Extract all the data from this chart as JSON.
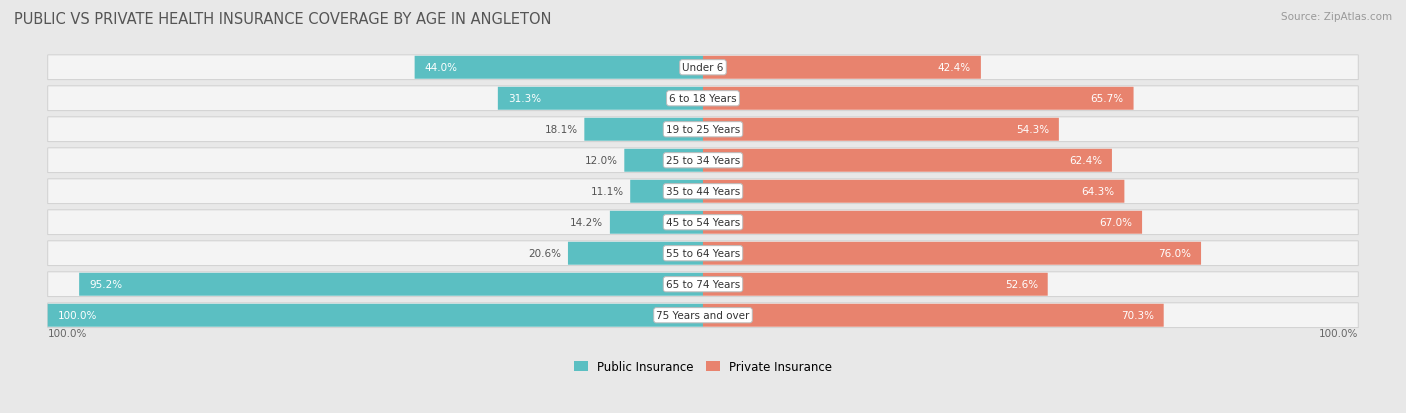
{
  "title": "PUBLIC VS PRIVATE HEALTH INSURANCE COVERAGE BY AGE IN ANGLETON",
  "source": "Source: ZipAtlas.com",
  "categories": [
    "Under 6",
    "6 to 18 Years",
    "19 to 25 Years",
    "25 to 34 Years",
    "35 to 44 Years",
    "45 to 54 Years",
    "55 to 64 Years",
    "65 to 74 Years",
    "75 Years and over"
  ],
  "public_values": [
    44.0,
    31.3,
    18.1,
    12.0,
    11.1,
    14.2,
    20.6,
    95.2,
    100.0
  ],
  "private_values": [
    42.4,
    65.7,
    54.3,
    62.4,
    64.3,
    67.0,
    76.0,
    52.6,
    70.3
  ],
  "public_color": "#5bbfc2",
  "private_color": "#e8836e",
  "bg_color": "#e8e8e8",
  "row_color": "#f4f4f4",
  "title_fontsize": 10.5,
  "label_fontsize": 7.5,
  "value_fontsize": 7.5,
  "legend_fontsize": 8.5,
  "source_fontsize": 7.5,
  "max_value": 100.0,
  "axis_label_left": "100.0%",
  "axis_label_right": "100.0%"
}
